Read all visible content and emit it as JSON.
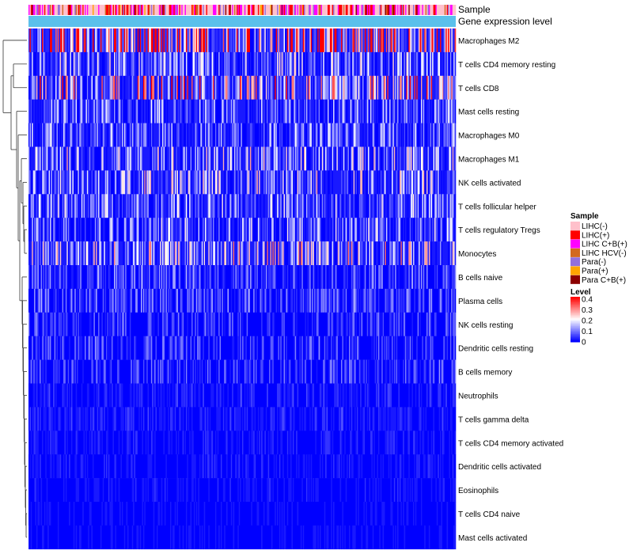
{
  "chart_data": {
    "type": "heatmap",
    "annotation_tracks": [
      "Sample",
      "Gene expression level"
    ],
    "rows": [
      "Macrophages M2",
      "T cells CD4 memory resting",
      "T cells CD8",
      "Mast cells resting",
      "Macrophages M0",
      "Macrophages M1",
      "NK cells activated",
      "T cells follicular helper",
      "T cells regulatory  Tregs",
      "Monocytes",
      "B cells naive",
      "Plasma cells",
      "NK cells resting",
      "Dendritic cells resting",
      "B cells memory",
      "Neutrophils",
      "T cells gamma delta",
      "T cells CD4 memory activated",
      "Dendritic cells activated",
      "Eosinophils",
      "T cells CD4 naive",
      "Mast cells activated"
    ],
    "row_mean_levels": [
      0.26,
      0.09,
      0.15,
      0.07,
      0.07,
      0.1,
      0.1,
      0.08,
      0.08,
      0.12,
      0.05,
      0.05,
      0.04,
      0.04,
      0.04,
      0.02,
      0.02,
      0.015,
      0.015,
      0.012,
      0.01,
      0.01
    ],
    "n_samples": 380,
    "color_scale": {
      "title": "Level",
      "min": 0,
      "max": 0.4,
      "ticks": [
        "0.4",
        "0.3",
        "0.2",
        "0.1",
        "0"
      ],
      "colors": [
        "#0000ff",
        "#ffffff",
        "#ff0000"
      ]
    },
    "legend_sample": {
      "title": "Sample",
      "entries": [
        {
          "label": "LIHC(-)",
          "color": "#ffc0cb"
        },
        {
          "label": "LIHC(+)",
          "color": "#ff0000"
        },
        {
          "label": "LIHC C+B(+)",
          "color": "#ff00ff"
        },
        {
          "label": "LIHC HCV(-)",
          "color": "#d2691e"
        },
        {
          "label": "Para(-)",
          "color": "#9370db"
        },
        {
          "label": "Para(+)",
          "color": "#ffa500"
        },
        {
          "label": "Para C+B(+)",
          "color": "#8b0000"
        }
      ]
    },
    "gene_expression_color": "#5bc0eb"
  }
}
